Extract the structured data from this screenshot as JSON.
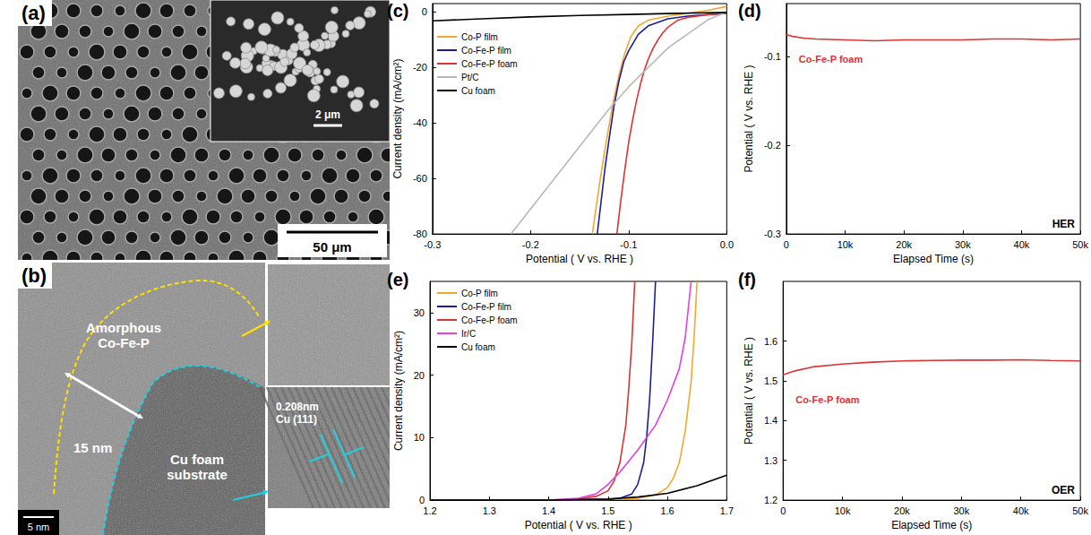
{
  "panels": [
    {
      "label": "(a)",
      "scale_bar": "50 μm",
      "inset_scale_bar": "2 μm"
    },
    {
      "label": "(b)",
      "regions": [
        "Amorphous\nCo-Fe-P",
        "Cu foam\nsubstrate"
      ],
      "thickness": "15 nm",
      "lattice": "0.208nm\nCu (111)",
      "scale_bar": "5 nm"
    }
  ],
  "chart_data": [
    {
      "type": "line",
      "panel_label": "(c)",
      "xlabel": "Potential ( V vs. RHE )",
      "ylabel": "Current density (mA/cm²)",
      "xlim": [
        -0.3,
        0.0
      ],
      "xticks": [
        -0.3,
        -0.2,
        -0.1,
        {
          "value": 0,
          "label": "0.0"
        }
      ],
      "ylim": [
        -80,
        3
      ],
      "yticks": [
        -80,
        -60,
        -40,
        -20,
        0
      ],
      "grid": false,
      "legend": "upper left",
      "series": [
        {
          "name": "Co-P film",
          "color": "#f0a92e",
          "x": [
            -0.137,
            -0.133,
            -0.128,
            -0.122,
            -0.116,
            -0.11,
            -0.104,
            -0.098,
            -0.09,
            -0.08,
            -0.06,
            -0.04,
            -0.02,
            0.0
          ],
          "values": [
            -80,
            -70,
            -58,
            -45,
            -33,
            -23,
            -15,
            -9,
            -5,
            -3,
            -1.5,
            -0.5,
            0.5,
            2
          ]
        },
        {
          "name": "Co-Fe-P film",
          "color": "#1c1c9c",
          "x": [
            -0.132,
            -0.128,
            -0.124,
            -0.12,
            -0.115,
            -0.11,
            -0.105,
            -0.1,
            -0.095,
            -0.09,
            -0.08,
            -0.06,
            -0.04,
            -0.02,
            0.0
          ],
          "values": [
            -80,
            -68,
            -56,
            -46,
            -34,
            -25,
            -18,
            -14,
            -11,
            -8,
            -5,
            -2.5,
            -1.5,
            -1,
            -0.5
          ]
        },
        {
          "name": "Co-Fe-P foam",
          "color": "#dd3333",
          "x": [
            -0.112,
            -0.108,
            -0.104,
            -0.1,
            -0.096,
            -0.092,
            -0.088,
            -0.084,
            -0.08,
            -0.075,
            -0.07,
            -0.065,
            -0.06,
            -0.05,
            -0.04,
            -0.02,
            0.0
          ],
          "values": [
            -80,
            -68,
            -57,
            -47,
            -39,
            -32,
            -26,
            -21,
            -17,
            -13,
            -10,
            -7.5,
            -5.5,
            -3,
            -2,
            -1,
            -0.5
          ]
        },
        {
          "name": "Pt/C",
          "color": "#b8b8b8",
          "x": [
            -0.22,
            -0.2,
            -0.18,
            -0.16,
            -0.14,
            -0.12,
            -0.1,
            -0.08,
            -0.06,
            -0.04,
            -0.02,
            0.0
          ],
          "values": [
            -80,
            -71,
            -62,
            -53,
            -44,
            -35,
            -27,
            -20,
            -13,
            -8,
            -3,
            0
          ]
        },
        {
          "name": "Cu foam",
          "color": "#000000",
          "x": [
            -0.3,
            -0.25,
            -0.2,
            -0.15,
            -0.1,
            -0.05,
            0.0
          ],
          "values": [
            -3.2,
            -2.5,
            -1.8,
            -1.3,
            -0.9,
            -0.5,
            -0.2
          ]
        }
      ]
    },
    {
      "type": "line",
      "panel_label": "(d)",
      "xlabel": "Elapsed Time (s)",
      "ylabel": "Potential ( V vs. RHE )",
      "xlim": [
        0,
        50000
      ],
      "xticks": [
        0,
        {
          "value": 10000,
          "label": "10k"
        },
        {
          "value": 20000,
          "label": "20k"
        },
        {
          "value": 30000,
          "label": "30k"
        },
        {
          "value": 40000,
          "label": "40k"
        },
        {
          "value": 50000,
          "label": "50k"
        }
      ],
      "ylim": [
        -0.3,
        -0.04
      ],
      "yticks": [
        -0.3,
        -0.2,
        -0.1
      ],
      "grid": false,
      "annotations": [
        "HER"
      ],
      "series": [
        {
          "name": "Co-Fe-P foam",
          "color": "#dd3333",
          "x": [
            0,
            1000,
            3000,
            5000,
            10000,
            15000,
            20000,
            25000,
            30000,
            35000,
            40000,
            45000,
            50000
          ],
          "values": [
            -0.075,
            -0.077,
            -0.079,
            -0.08,
            -0.081,
            -0.082,
            -0.081,
            -0.081,
            -0.081,
            -0.08,
            -0.08,
            -0.081,
            -0.08
          ]
        }
      ]
    },
    {
      "type": "line",
      "panel_label": "(e)",
      "xlabel": "Potential ( V vs. RHE )",
      "ylabel": "Current density (mA/cm²)",
      "xlim": [
        1.2,
        1.7
      ],
      "xticks": [
        1.2,
        1.3,
        1.4,
        1.5,
        1.6,
        1.7
      ],
      "ylim": [
        0,
        35
      ],
      "yticks": [
        0,
        10,
        20,
        30
      ],
      "grid": false,
      "legend": "upper left",
      "series": [
        {
          "name": "Co-P film",
          "color": "#f0a92e",
          "x": [
            1.2,
            1.4,
            1.5,
            1.55,
            1.58,
            1.6,
            1.61,
            1.62,
            1.63,
            1.64,
            1.645,
            1.65
          ],
          "values": [
            0,
            0,
            0.1,
            0.3,
            0.8,
            2,
            3.5,
            6,
            11,
            19,
            26,
            35
          ]
        },
        {
          "name": "Co-Fe-P film",
          "color": "#1c1c9c",
          "x": [
            1.2,
            1.4,
            1.5,
            1.52,
            1.54,
            1.55,
            1.56,
            1.565,
            1.57,
            1.575,
            1.58
          ],
          "values": [
            0,
            0,
            0.1,
            0.3,
            1,
            2.5,
            6,
            10,
            16,
            25,
            35
          ]
        },
        {
          "name": "Co-Fe-P foam",
          "color": "#dd3333",
          "x": [
            1.2,
            1.4,
            1.45,
            1.48,
            1.5,
            1.51,
            1.52,
            1.53,
            1.535,
            1.54,
            1.545
          ],
          "values": [
            0,
            0,
            0.2,
            0.6,
            1.5,
            3,
            6,
            12,
            18,
            25,
            35
          ]
        },
        {
          "name": "Ir/C",
          "color": "#e040e0",
          "x": [
            1.2,
            1.4,
            1.45,
            1.48,
            1.5,
            1.52,
            1.55,
            1.58,
            1.6,
            1.62,
            1.63,
            1.64
          ],
          "values": [
            0,
            0,
            0.3,
            1,
            2.5,
            4.5,
            8,
            12,
            16,
            21,
            26,
            35
          ]
        },
        {
          "name": "Cu foam",
          "color": "#000000",
          "x": [
            1.2,
            1.4,
            1.5,
            1.55,
            1.6,
            1.65,
            1.7
          ],
          "values": [
            0,
            0,
            0.2,
            0.5,
            1.1,
            2.3,
            4
          ]
        }
      ]
    },
    {
      "type": "line",
      "panel_label": "(f)",
      "xlabel": "Elapsed Time (s)",
      "ylabel": "Potential ( V vs. RHE )",
      "xlim": [
        0,
        50000
      ],
      "xticks": [
        0,
        {
          "value": 10000,
          "label": "10k"
        },
        {
          "value": 20000,
          "label": "20k"
        },
        {
          "value": 30000,
          "label": "30k"
        },
        {
          "value": 40000,
          "label": "40k"
        },
        {
          "value": 50000,
          "label": "50k"
        }
      ],
      "ylim": [
        1.2,
        1.75
      ],
      "yticks": [
        1.2,
        1.3,
        1.4,
        1.5,
        1.6
      ],
      "grid": false,
      "annotations": [
        "OER"
      ],
      "series": [
        {
          "name": "Co-Fe-P foam",
          "color": "#dd3333",
          "x": [
            0,
            2000,
            5000,
            10000,
            15000,
            20000,
            25000,
            30000,
            35000,
            40000,
            45000,
            50000
          ],
          "values": [
            1.515,
            1.525,
            1.535,
            1.542,
            1.547,
            1.55,
            1.551,
            1.552,
            1.552,
            1.553,
            1.551,
            1.55
          ]
        }
      ]
    }
  ]
}
